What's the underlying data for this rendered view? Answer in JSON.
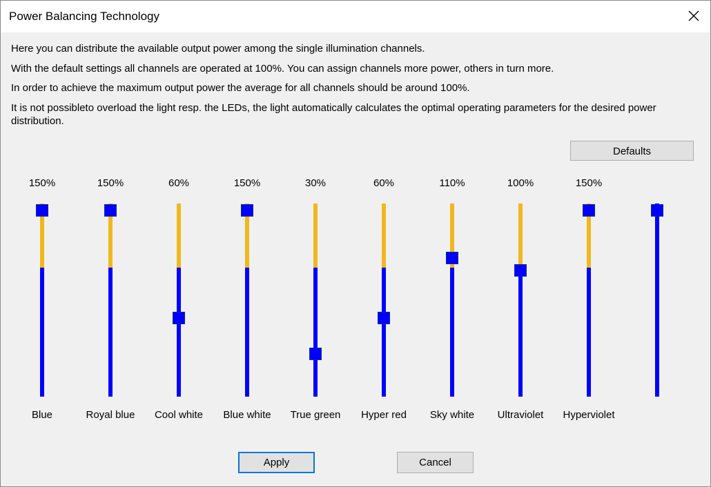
{
  "window": {
    "title": "Power Balancing Technology",
    "close_icon": "close-icon"
  },
  "description": [
    "Here you can distribute the available output power among the single illumination channels.",
    "With the default settings all channels are operated at 100%. You can assign channels more power, others in turn more.",
    "In order to achieve the maximum output power the average for all channels should be around 100%.",
    "It is not possibleto overload the light resp. the LEDs, the light automatically calculates the optimal operating parameters for the desired power distribution."
  ],
  "buttons": {
    "defaults": "Defaults",
    "apply": "Apply",
    "cancel": "Cancel"
  },
  "slider_range": {
    "min": 0,
    "max": 150,
    "default": 100
  },
  "colors": {
    "track_base": "#0000ff",
    "track_boost": "#f0b81e",
    "thumb": "#0000ff"
  },
  "channels": [
    {
      "name": "Blue",
      "value_label": "150%",
      "value": 150
    },
    {
      "name": "Royal blue",
      "value_label": "150%",
      "value": 150
    },
    {
      "name": "Cool white",
      "value_label": "60%",
      "value": 60
    },
    {
      "name": "Blue white",
      "value_label": "150%",
      "value": 150
    },
    {
      "name": "True green",
      "value_label": "30%",
      "value": 30
    },
    {
      "name": "Hyper red",
      "value_label": "60%",
      "value": 60
    },
    {
      "name": "Sky white",
      "value_label": "110%",
      "value": 110
    },
    {
      "name": "Ultraviolet",
      "value_label": "100%",
      "value": 100
    },
    {
      "name": "Hyperviolet",
      "value_label": "150%",
      "value": 150
    },
    {
      "name": "",
      "value_label": "",
      "value": 150
    }
  ]
}
